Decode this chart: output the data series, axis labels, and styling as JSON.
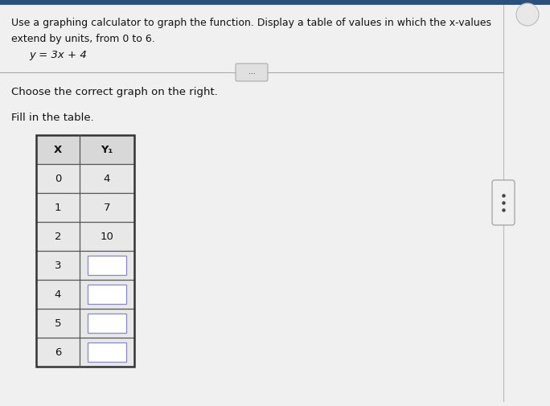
{
  "title_line1": "Use a graphing calculator to graph the function. Display a table of values in which the x-values",
  "title_line2": "extend by units, from 0 to 6.",
  "equation": "y = 3x + 4",
  "instruction1": "Choose the correct graph on the right.",
  "instruction2": "Fill in the table.",
  "col_headers": [
    "X",
    "Y₁"
  ],
  "x_values": [
    0,
    1,
    2,
    3,
    4,
    5,
    6
  ],
  "y_values": [
    4,
    7,
    10,
    null,
    null,
    null,
    null
  ],
  "bg_color": "#e8e8e8",
  "text_color": "#111111",
  "table_border_color": "#333333",
  "table_line_color": "#555555",
  "header_bg": "#d8d8d8",
  "data_bg": "#e8e8e8",
  "blank_box_color": "#ffffff",
  "blank_box_border": "#8888cc",
  "sep_line_color": "#aaaaaa",
  "scrollbar_border": "#999999",
  "scrollbar_bg": "#f0f0f0",
  "dots_color": "#444444",
  "dots_button_text": "...",
  "top_bar_color": "#2a5080"
}
